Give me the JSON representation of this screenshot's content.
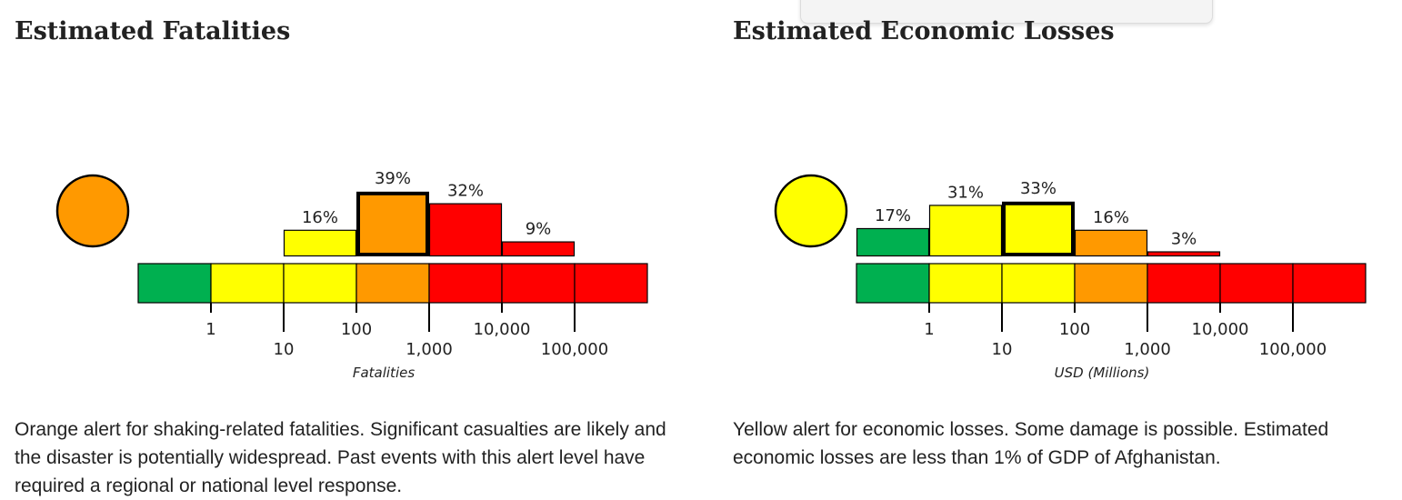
{
  "popup": {
    "visible": true
  },
  "panels": [
    {
      "title": "Estimated Fatalities",
      "description": "Orange alert for shaking-related fatalities. Significant casualties are likely and the disaster is potentially widespread. Past events with this alert level have required a regional or national level response.",
      "alert_color": "#ff9900"
    },
    {
      "title": "Estimated Economic Losses",
      "description": "Yellow alert for economic losses. Some damage is possible. Estimated economic losses are less than 1% of GDP of Afghanistan.",
      "alert_color": "#ffff00"
    }
  ],
  "chart_data": [
    {
      "type": "bar",
      "xlabel": "Fatalities",
      "ylabel": "",
      "alert_color": "#ff9900",
      "bins": [
        "0-1",
        "1-10",
        "10-100",
        "100-1,000",
        "1,000-10,000",
        "10,000-100,000",
        "100,000+"
      ],
      "values": [
        0,
        0,
        16,
        39,
        32,
        9,
        0
      ],
      "value_labels": [
        "",
        "",
        "16%",
        "39%",
        "32%",
        "9%",
        ""
      ],
      "bar_colors": [
        "#00b050",
        "#ffff00",
        "#ffff00",
        "#ff9900",
        "#ff0000",
        "#ff0000",
        "#ff0000"
      ],
      "highlight_bin": 3,
      "scale_colors": [
        "#00b050",
        "#ffff00",
        "#ffff00",
        "#ff9900",
        "#ff0000",
        "#ff0000",
        "#ff0000"
      ],
      "tick_labels": [
        "1",
        "10",
        "100",
        "1,000",
        "10,000",
        "100,000"
      ],
      "ylim": [
        0,
        40
      ]
    },
    {
      "type": "bar",
      "xlabel": "USD (Millions)",
      "ylabel": "",
      "alert_color": "#ffff00",
      "bins": [
        "0-1",
        "1-10",
        "10-100",
        "100-1,000",
        "1,000-10,000",
        "10,000-100,000",
        "100,000+"
      ],
      "values": [
        17,
        31,
        33,
        16,
        3,
        0,
        0
      ],
      "value_labels": [
        "17%",
        "31%",
        "33%",
        "16%",
        "3%",
        "",
        ""
      ],
      "bar_colors": [
        "#00b050",
        "#ffff00",
        "#ffff00",
        "#ff9900",
        "#ff0000",
        "#ff0000",
        "#ff0000"
      ],
      "highlight_bin": 2,
      "scale_colors": [
        "#00b050",
        "#ffff00",
        "#ffff00",
        "#ff9900",
        "#ff0000",
        "#ff0000",
        "#ff0000"
      ],
      "tick_labels": [
        "1",
        "10",
        "100",
        "1,000",
        "10,000",
        "100,000"
      ],
      "ylim": [
        0,
        40
      ]
    }
  ]
}
